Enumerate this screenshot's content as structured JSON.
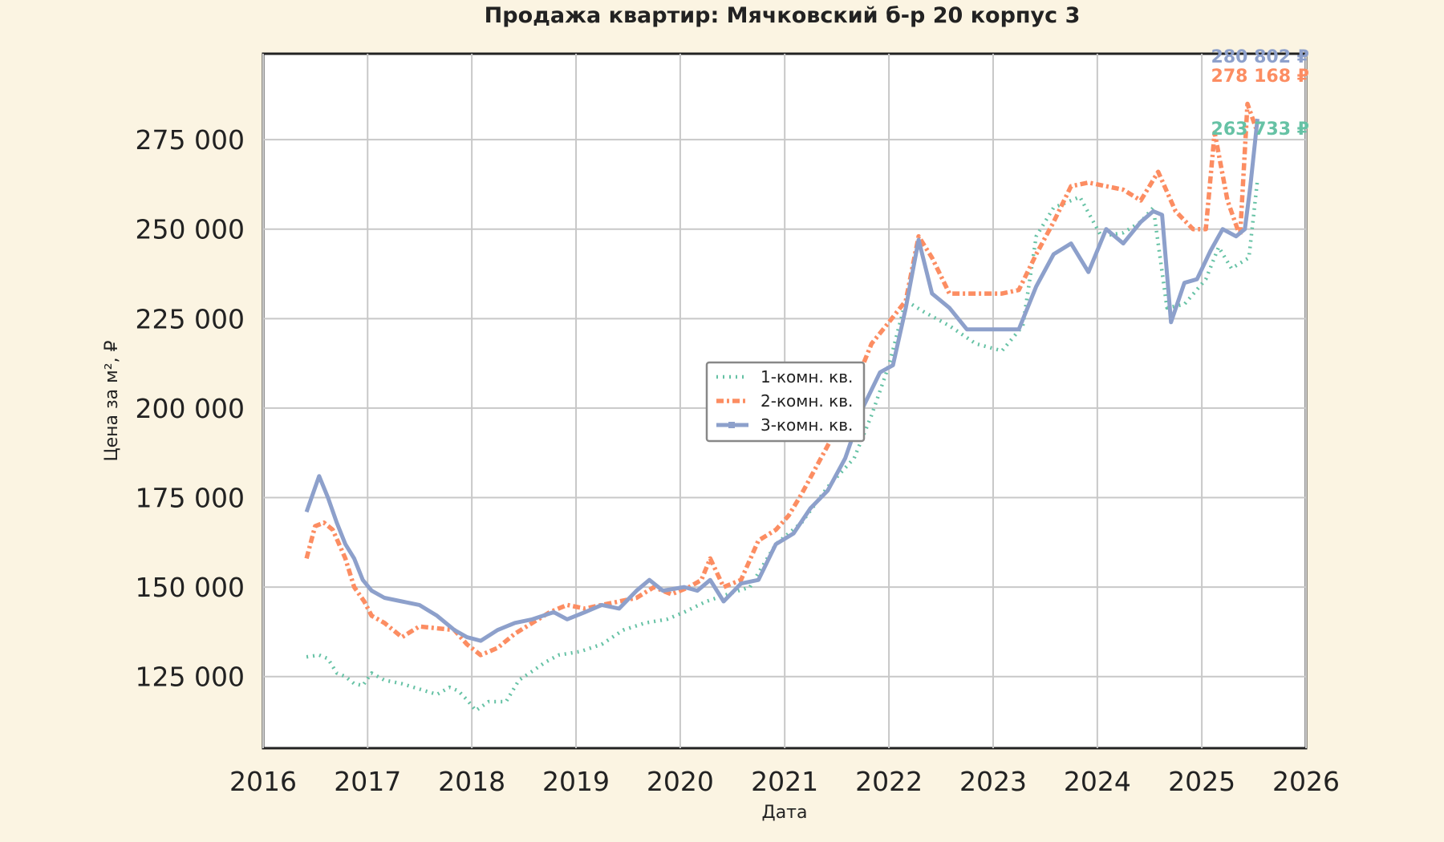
{
  "chart_data": {
    "type": "line",
    "title": "Продажа квартир: Мячковский б-р 20 корпус 3",
    "xlabel": "Дата",
    "ylabel": "Цена за м², ₽",
    "xlim": [
      "2016-01-01",
      "2026-01-01"
    ],
    "ylim": [
      105000,
      299000
    ],
    "grid": true,
    "legend_position": "center",
    "x_ticks": [
      "2016",
      "2017",
      "2018",
      "2019",
      "2020",
      "2021",
      "2022",
      "2023",
      "2024",
      "2025",
      "2026"
    ],
    "y_ticks": [
      125000,
      150000,
      175000,
      200000,
      225000,
      250000,
      275000
    ],
    "y_tick_labels": [
      "125 000",
      "150 000",
      "175 000",
      "200 000",
      "225 000",
      "250 000",
      "275 000"
    ],
    "series": [
      {
        "name": "1-комн. кв.",
        "color": "#66c2a5",
        "style": "dotted",
        "end_label": "263 733 ₽",
        "x": [
          "2016-06-01",
          "2016-07-15",
          "2016-08-15",
          "2016-09-15",
          "2016-10-15",
          "2016-11-15",
          "2016-12-15",
          "2017-01-15",
          "2017-03-01",
          "2017-05-01",
          "2017-07-01",
          "2017-09-01",
          "2017-10-15",
          "2017-11-15",
          "2017-12-15",
          "2018-01-15",
          "2018-03-01",
          "2018-05-01",
          "2018-06-15",
          "2018-08-01",
          "2018-09-15",
          "2018-11-01",
          "2019-01-15",
          "2019-04-01",
          "2019-06-15",
          "2019-09-01",
          "2019-11-15",
          "2020-01-15",
          "2020-04-01",
          "2020-06-15",
          "2020-09-01",
          "2020-12-01",
          "2021-03-01",
          "2021-06-01",
          "2021-09-01",
          "2021-11-01",
          "2022-01-01",
          "2022-03-01",
          "2022-05-01",
          "2022-08-01",
          "2022-11-01",
          "2023-02-01",
          "2023-04-15",
          "2023-06-01",
          "2023-08-01",
          "2023-11-01",
          "2024-01-15",
          "2024-04-01",
          "2024-06-01",
          "2024-07-15",
          "2024-09-01",
          "2024-11-01",
          "2025-01-15",
          "2025-03-01",
          "2025-04-15",
          "2025-06-15",
          "2025-07-15"
        ],
        "values": [
          130500,
          131000,
          130000,
          126000,
          125000,
          123000,
          122500,
          126000,
          124000,
          123000,
          121500,
          120000,
          122000,
          121000,
          118500,
          115500,
          118000,
          118000,
          124000,
          126500,
          129000,
          131000,
          132000,
          134000,
          138000,
          140000,
          141000,
          143000,
          146000,
          148000,
          150000,
          162000,
          168000,
          178000,
          186000,
          198000,
          212000,
          230000,
          227000,
          223000,
          218000,
          216000,
          223000,
          248000,
          256000,
          259000,
          248000,
          249000,
          252000,
          256000,
          228000,
          229000,
          236000,
          245000,
          239000,
          242000,
          263733
        ]
      },
      {
        "name": "2-комн. кв.",
        "color": "#fc8d62",
        "style": "dash-dot",
        "end_label": "278 168 ₽",
        "x": [
          "2016-06-01",
          "2016-07-01",
          "2016-08-01",
          "2016-09-01",
          "2016-10-15",
          "2016-11-15",
          "2016-12-20",
          "2017-01-15",
          "2017-03-01",
          "2017-05-01",
          "2017-07-01",
          "2017-09-01",
          "2017-11-01",
          "2017-12-15",
          "2018-02-01",
          "2018-04-01",
          "2018-06-01",
          "2018-08-01",
          "2018-10-01",
          "2018-12-01",
          "2019-02-01",
          "2019-04-01",
          "2019-06-01",
          "2019-08-01",
          "2019-10-01",
          "2019-12-01",
          "2020-02-01",
          "2020-03-15",
          "2020-04-15",
          "2020-06-01",
          "2020-08-01",
          "2020-10-01",
          "2020-12-01",
          "2021-01-15",
          "2021-03-01",
          "2021-05-01",
          "2021-07-01",
          "2021-09-01",
          "2021-11-01",
          "2022-01-01",
          "2022-03-01",
          "2022-04-15",
          "2022-06-01",
          "2022-08-01",
          "2022-10-01",
          "2022-12-01",
          "2023-02-01",
          "2023-04-01",
          "2023-06-01",
          "2023-08-01",
          "2023-10-01",
          "2023-12-01",
          "2024-02-01",
          "2024-04-01",
          "2024-06-01",
          "2024-08-01",
          "2024-10-01",
          "2024-12-01",
          "2025-01-15",
          "2025-02-15",
          "2025-04-01",
          "2025-05-15",
          "2025-06-10",
          "2025-07-10"
        ],
        "values": [
          158000,
          167000,
          168000,
          166000,
          158000,
          150000,
          146000,
          142000,
          140000,
          136000,
          139000,
          138500,
          138000,
          134000,
          131000,
          133000,
          137000,
          140000,
          143000,
          145000,
          144000,
          145000,
          146000,
          147000,
          150000,
          148000,
          150000,
          152000,
          158000,
          150000,
          152000,
          163000,
          166000,
          170000,
          176000,
          185000,
          194000,
          206000,
          218000,
          224000,
          230000,
          248000,
          242000,
          232000,
          232000,
          232000,
          232000,
          233000,
          243000,
          252000,
          262000,
          263000,
          262000,
          261000,
          258000,
          266000,
          255000,
          250000,
          250000,
          277000,
          258000,
          248000,
          285000,
          278168
        ]
      },
      {
        "name": "3-комн. кв.",
        "color": "#8da0cb",
        "style": "solid-square",
        "end_label": "280 802 ₽",
        "x": [
          "2016-06-01",
          "2016-07-15",
          "2016-08-15",
          "2016-09-15",
          "2016-10-15",
          "2016-11-15",
          "2016-12-15",
          "2017-01-15",
          "2017-03-01",
          "2017-05-01",
          "2017-07-01",
          "2017-09-01",
          "2017-11-01",
          "2017-12-15",
          "2018-02-01",
          "2018-04-01",
          "2018-06-01",
          "2018-08-01",
          "2018-10-15",
          "2018-12-01",
          "2019-02-01",
          "2019-04-01",
          "2019-06-01",
          "2019-08-01",
          "2019-09-15",
          "2019-11-01",
          "2020-01-15",
          "2020-03-01",
          "2020-04-15",
          "2020-06-01",
          "2020-08-01",
          "2020-10-01",
          "2020-12-01",
          "2021-02-01",
          "2021-04-01",
          "2021-06-01",
          "2021-08-01",
          "2021-10-01",
          "2021-12-01",
          "2022-01-15",
          "2022-03-01",
          "2022-04-15",
          "2022-06-01",
          "2022-08-01",
          "2022-10-01",
          "2022-12-01",
          "2023-02-01",
          "2023-04-01",
          "2023-06-01",
          "2023-08-01",
          "2023-10-01",
          "2023-12-01",
          "2024-02-01",
          "2024-04-01",
          "2024-06-01",
          "2024-07-15",
          "2024-08-15",
          "2024-09-15",
          "2024-11-01",
          "2024-12-15",
          "2025-02-01",
          "2025-03-15",
          "2025-05-01",
          "2025-06-01",
          "2025-06-20",
          "2025-07-15"
        ],
        "values": [
          171000,
          181000,
          175000,
          168000,
          162000,
          158000,
          152000,
          149000,
          147000,
          146000,
          145000,
          142000,
          138000,
          136000,
          135000,
          138000,
          140000,
          141000,
          143000,
          141000,
          143000,
          145000,
          144000,
          149000,
          152000,
          149000,
          150000,
          149000,
          152000,
          146000,
          151000,
          152000,
          162000,
          165000,
          172000,
          177000,
          186000,
          200000,
          210000,
          212000,
          228000,
          247000,
          232000,
          228000,
          222000,
          222000,
          222000,
          222000,
          234000,
          243000,
          246000,
          238000,
          250000,
          246000,
          252000,
          255000,
          254000,
          224000,
          235000,
          236000,
          244000,
          250000,
          248000,
          250000,
          262000,
          280802
        ]
      }
    ]
  }
}
